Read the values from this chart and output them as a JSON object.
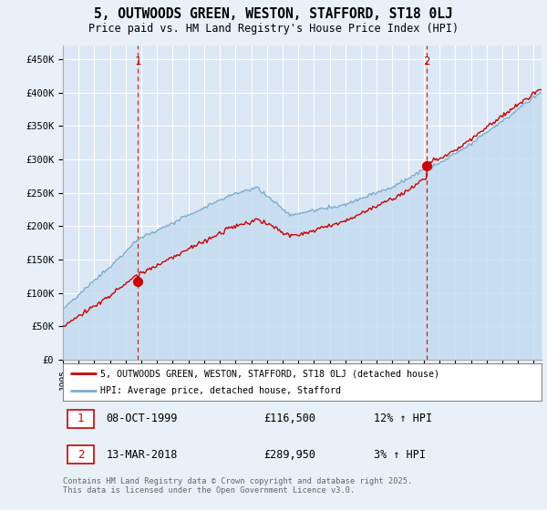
{
  "title": "5, OUTWOODS GREEN, WESTON, STAFFORD, ST18 0LJ",
  "subtitle": "Price paid vs. HM Land Registry's House Price Index (HPI)",
  "background_color": "#e8f0f8",
  "plot_bg_color": "#dce8f5",
  "ylim": [
    0,
    470000
  ],
  "yticks": [
    0,
    50000,
    100000,
    150000,
    200000,
    250000,
    300000,
    350000,
    400000,
    450000
  ],
  "ytick_labels": [
    "£0",
    "£50K",
    "£100K",
    "£150K",
    "£200K",
    "£250K",
    "£300K",
    "£350K",
    "£400K",
    "£450K"
  ],
  "sale1_date": 1999.78,
  "sale1_price": 116500,
  "sale2_date": 2018.2,
  "sale2_price": 289950,
  "legend_line1": "5, OUTWOODS GREEN, WESTON, STAFFORD, ST18 0LJ (detached house)",
  "legend_line2": "HPI: Average price, detached house, Stafford",
  "table_rows": [
    [
      "1",
      "08-OCT-1999",
      "£116,500",
      "12% ↑ HPI"
    ],
    [
      "2",
      "13-MAR-2018",
      "£289,950",
      "3% ↑ HPI"
    ]
  ],
  "footer": "Contains HM Land Registry data © Crown copyright and database right 2025.\nThis data is licensed under the Open Government Licence v3.0.",
  "red_color": "#cc0000",
  "blue_color": "#7aaecc",
  "blue_fill": "#c5ddf0",
  "grid_color": "#ffffff",
  "dashed_color": "#cc0000",
  "xstart": 1995.0,
  "xend": 2025.5
}
